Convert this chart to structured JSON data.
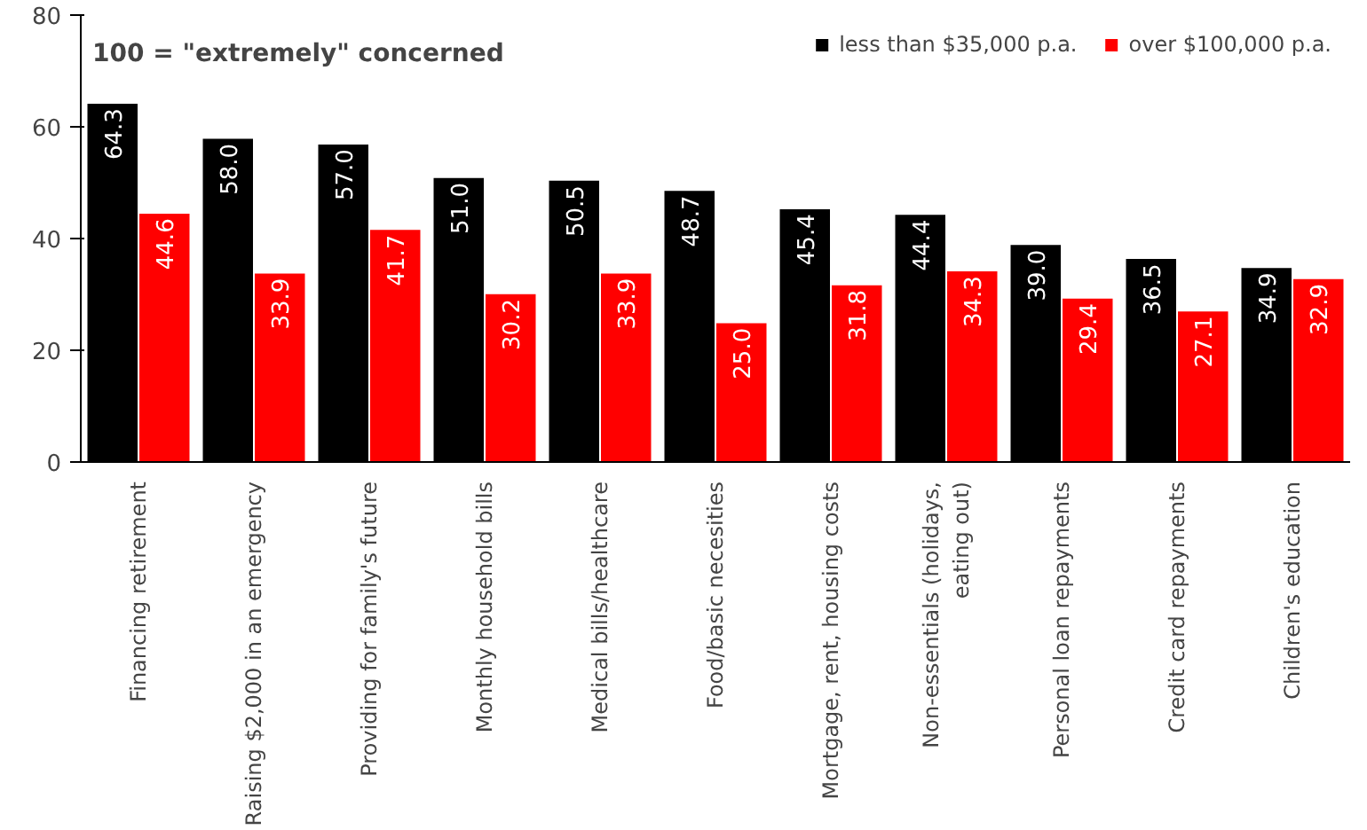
{
  "chart_data": {
    "type": "bar",
    "title": "100 = \"extremely\" concerned",
    "categories": [
      "Financing retirement",
      "Raising $2,000 in an emergency",
      "Providing for family's future",
      "Monthly household bills",
      "Medical bills/healthcare",
      "Food/basic necesities",
      "Mortgage, rent, housing costs",
      "Non-essentials (holidays, eating out)",
      "Personal loan repayments",
      "Credit card repayments",
      "Children's education"
    ],
    "series": [
      {
        "name": "less than $35,000 p.a.",
        "color": "#000000",
        "values": [
          64.3,
          58.0,
          57.0,
          51.0,
          50.5,
          48.7,
          45.4,
          44.4,
          39.0,
          36.5,
          34.9
        ],
        "value_labels": [
          "64.3",
          "58.0",
          "57.0",
          "51.0",
          "50.5",
          "48.7",
          "45.4",
          "44.4",
          "39.0",
          "36.5",
          "34.9"
        ]
      },
      {
        "name": "over $100,000 p.a.",
        "color": "#ff0000",
        "values": [
          44.6,
          33.9,
          41.7,
          30.2,
          33.9,
          25.0,
          31.8,
          34.3,
          29.4,
          27.1,
          32.9
        ],
        "value_labels": [
          "44.6",
          "33.9",
          "41.7",
          "30.2",
          "33.9",
          "25.0",
          "31.8",
          "34.3",
          "29.4",
          "27.1",
          "32.9"
        ]
      }
    ],
    "ylim": [
      0,
      80
    ],
    "yticks": [
      0,
      20,
      40,
      60,
      80
    ],
    "grid": false,
    "legend": "top right"
  }
}
